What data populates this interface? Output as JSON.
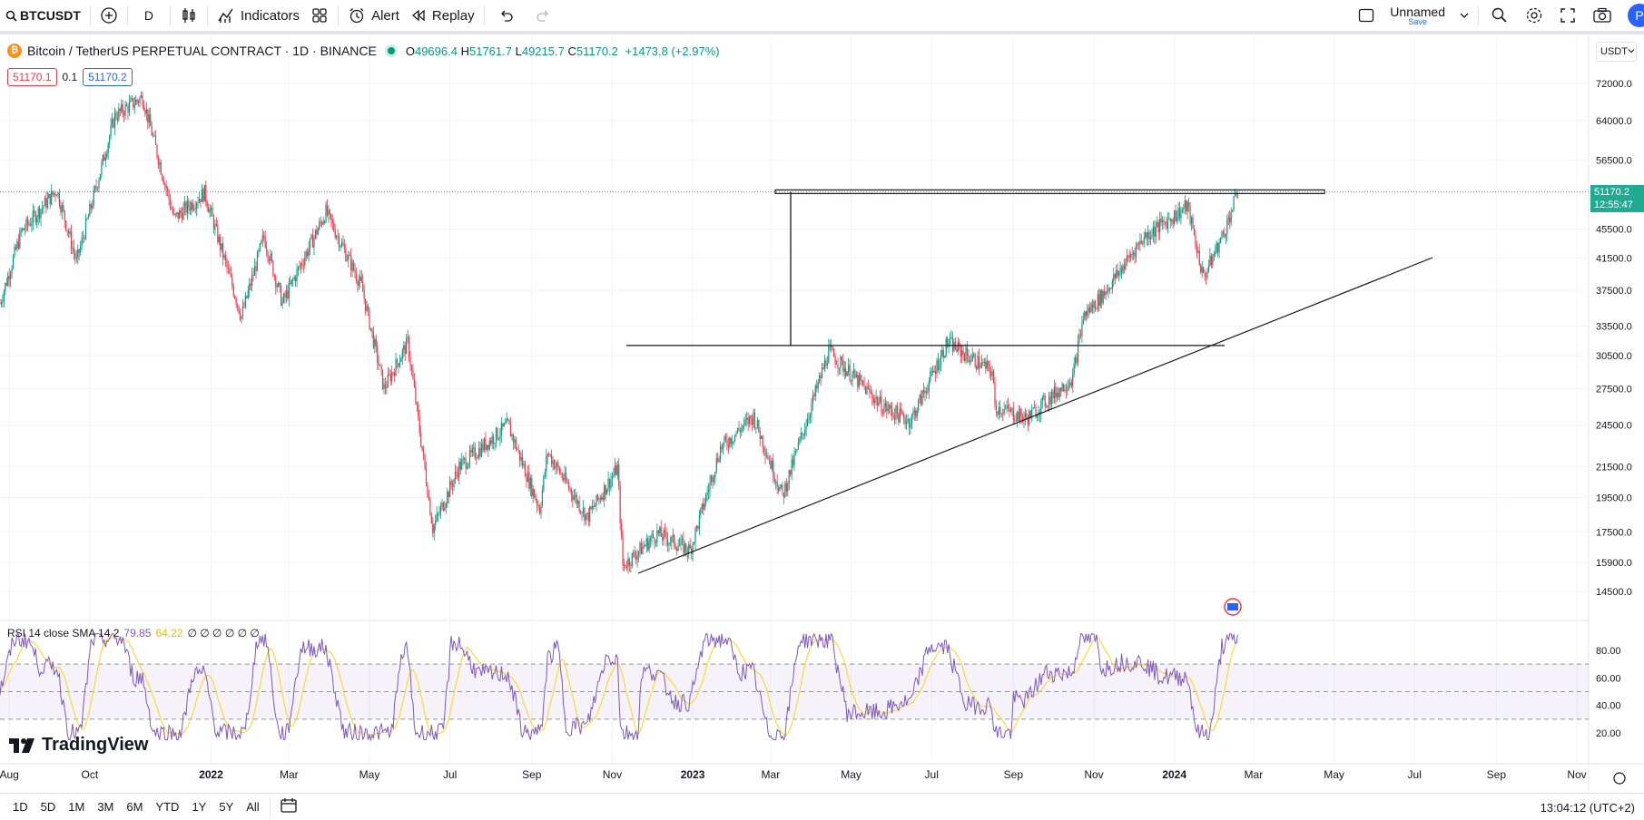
{
  "toolbar": {
    "symbol": "BTCUSDT",
    "interval": "D",
    "indicators_label": "Indicators",
    "alert_label": "Alert",
    "replay_label": "Replay",
    "layout_name": "Unnamed",
    "save_label": "Save",
    "avatar_letter": "P"
  },
  "legend": {
    "title": "Bitcoin / TetherUS PERPETUAL CONTRACT · 1D · BINANCE",
    "o_label": "O",
    "o": "49696.4",
    "h_label": "H",
    "h": "51761.7",
    "l_label": "L",
    "l": "49215.7",
    "c_label": "C",
    "c": "51170.2",
    "change": "+1473.8 (+2.97%)",
    "sell_price": "51170.1",
    "spread": "0.1",
    "buy_price": "51170.2"
  },
  "currency": "USDT",
  "price_axis": {
    "ticks": [
      "72000.0",
      "64000.0",
      "56500.0",
      "51170.2",
      "45500.0",
      "41500.0",
      "37500.0",
      "33500.0",
      "30500.0",
      "27500.0",
      "24500.0",
      "21500.0",
      "19500.0",
      "17500.0",
      "15900.0",
      "14500.0"
    ],
    "last_price": "51170.2",
    "countdown": "12:55:47"
  },
  "time_axis": [
    "Aug",
    "Oct",
    "2022",
    "Mar",
    "May",
    "Jul",
    "Sep",
    "Nov",
    "2023",
    "Mar",
    "May",
    "Jul",
    "Sep",
    "Nov",
    "2024",
    "Mar",
    "May",
    "Jul",
    "Sep",
    "Nov"
  ],
  "rsi": {
    "label": "RSI 14 close SMA 14 2",
    "value": "79.85",
    "sma": "64.22",
    "extra": "∅ ∅ ∅ ∅ ∅ ∅",
    "ticks": [
      "80.00",
      "60.00",
      "40.00",
      "20.00"
    ]
  },
  "logo_text": "TradingView",
  "periods": [
    "1D",
    "5D",
    "1M",
    "3M",
    "6M",
    "YTD",
    "1Y",
    "5Y",
    "All"
  ],
  "clock": "13:04:12 (UTC+2)",
  "colors": {
    "up": "#089981",
    "down": "#f23645",
    "rsi": "#7e57c2",
    "sma": "#fdd835",
    "accent": "#2962ff"
  },
  "chart_data": {
    "type": "candlestick",
    "title": "Bitcoin / TetherUS PERPETUAL CONTRACT · 1D · BINANCE",
    "ylim": [
      14500,
      72000
    ],
    "y_scale": "log",
    "series": [
      {
        "name": "BTCUSDT",
        "x": [
          "2021-07",
          "2021-09",
          "2021-11",
          "2022-01",
          "2022-03",
          "2022-04",
          "2022-06",
          "2022-08",
          "2022-09",
          "2022-11",
          "2022-12",
          "2023-01",
          "2023-03",
          "2023-04",
          "2023-06",
          "2023-07",
          "2023-08",
          "2023-10",
          "2023-12",
          "2024-01",
          "2024-02"
        ],
        "y": [
          30000,
          47000,
          69000,
          38000,
          47500,
          41000,
          19000,
          24000,
          20000,
          15500,
          16800,
          21000,
          28000,
          30000,
          26000,
          31000,
          26000,
          35000,
          44000,
          39500,
          51170
        ]
      }
    ],
    "annotations": [
      "resistance 51170",
      "support 31500",
      "rising trendline"
    ]
  }
}
